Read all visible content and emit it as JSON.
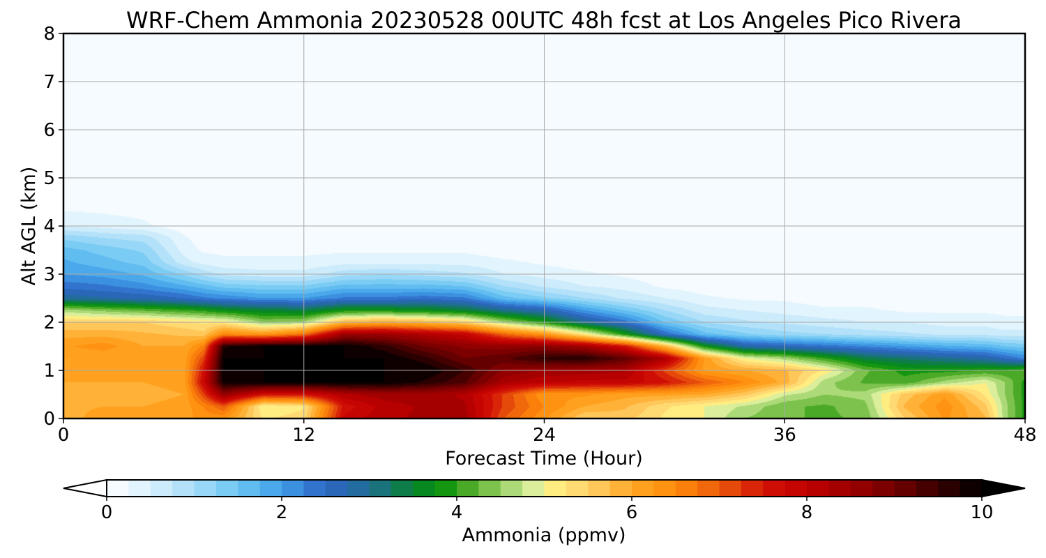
{
  "chart_data": {
    "type": "heatmap",
    "title": "WRF-Chem Ammonia  20230528 00UTC 48h fcst at Los Angeles Pico Rivera",
    "xlabel": "Forecast Time (Hour)",
    "ylabel": "Alt AGL (km)",
    "xlim": [
      0,
      48
    ],
    "ylim": [
      0,
      8
    ],
    "xticks": [
      "0",
      "12",
      "24",
      "36",
      "48"
    ],
    "yticks": [
      "0",
      "1",
      "2",
      "3",
      "4",
      "5",
      "6",
      "7",
      "8"
    ],
    "grid": true,
    "colorbar": {
      "label": "Ammonia  (ppmv)",
      "range": [
        0,
        10
      ],
      "extend": "both",
      "ticks": [
        "0",
        "2",
        "4",
        "6",
        "8",
        "10"
      ],
      "stops": [
        {
          "v": 0,
          "c": "#ffffff"
        },
        {
          "v": 0.5,
          "c": "#d8f0fc"
        },
        {
          "v": 1.0,
          "c": "#a6dcf8"
        },
        {
          "v": 1.5,
          "c": "#6cc6f3"
        },
        {
          "v": 2.0,
          "c": "#3f9ee8"
        },
        {
          "v": 2.5,
          "c": "#2e64c4"
        },
        {
          "v": 3.0,
          "c": "#1f6e92"
        },
        {
          "v": 3.5,
          "c": "#0a8232"
        },
        {
          "v": 3.8,
          "c": "#05900a"
        },
        {
          "v": 4.2,
          "c": "#5ab02e"
        },
        {
          "v": 4.6,
          "c": "#a8d874"
        },
        {
          "v": 4.9,
          "c": "#e0f0a0"
        },
        {
          "v": 5.0,
          "c": "#fff68a"
        },
        {
          "v": 5.5,
          "c": "#ffd06a"
        },
        {
          "v": 6.0,
          "c": "#ffa826"
        },
        {
          "v": 6.5,
          "c": "#ff8c0a"
        },
        {
          "v": 7.0,
          "c": "#ec5c0c"
        },
        {
          "v": 7.5,
          "c": "#d21206"
        },
        {
          "v": 8.0,
          "c": "#c00000"
        },
        {
          "v": 8.5,
          "c": "#9c0000"
        },
        {
          "v": 9.0,
          "c": "#720000"
        },
        {
          "v": 9.5,
          "c": "#380000"
        },
        {
          "v": 10.0,
          "c": "#000000"
        }
      ]
    },
    "field": {
      "x_hours": [
        0,
        2,
        4,
        6,
        7,
        8,
        10,
        12,
        14,
        16,
        18,
        20,
        22,
        24,
        26,
        28,
        30,
        32,
        34,
        36,
        38,
        40,
        42,
        44,
        46,
        47,
        48
      ],
      "z_km": [
        0,
        0.25,
        0.5,
        0.75,
        1.0,
        1.25,
        1.5,
        1.75,
        2.0,
        2.25,
        2.5,
        2.75,
        3.0,
        3.25,
        3.5,
        3.75,
        4.0,
        4.5,
        5.0,
        8.0
      ],
      "ppmv": [
        [
          5.8,
          6.2,
          6.0,
          6.1,
          6.4,
          6.3,
          5.2,
          5.4,
          7.8,
          8.2,
          8.3,
          8.4,
          7.0,
          6.3,
          5.5,
          5.6,
          5.2,
          5.0,
          4.5,
          4.3,
          4.2,
          4.3,
          5.5,
          6.3,
          5.8,
          4.6,
          3.9
        ],
        [
          5.9,
          6.0,
          6.0,
          6.1,
          6.5,
          7.0,
          5.0,
          5.2,
          7.6,
          8.1,
          8.3,
          8.3,
          7.2,
          6.5,
          6.0,
          5.8,
          5.3,
          5.0,
          4.7,
          4.3,
          4.2,
          4.4,
          5.8,
          6.4,
          5.6,
          4.6,
          3.9
        ],
        [
          5.9,
          6.0,
          5.9,
          6.0,
          7.2,
          8.6,
          7.6,
          7.6,
          8.2,
          8.4,
          8.4,
          8.2,
          7.2,
          6.3,
          6.3,
          6.1,
          6.1,
          6.0,
          5.6,
          4.8,
          4.5,
          4.6,
          5.6,
          6.2,
          5.2,
          4.5,
          3.9
        ],
        [
          6.0,
          6.0,
          6.0,
          6.1,
          7.8,
          9.9,
          10.0,
          10.0,
          10.0,
          10.0,
          9.7,
          9.3,
          8.3,
          8.0,
          7.9,
          7.9,
          7.6,
          7.0,
          6.5,
          5.9,
          4.6,
          4.2,
          4.1,
          4.6,
          5.0,
          4.5,
          3.9
        ],
        [
          6.0,
          6.0,
          6.0,
          6.1,
          7.6,
          10.0,
          10.0,
          10.0,
          10.0,
          10.0,
          10.0,
          9.5,
          8.7,
          8.5,
          8.4,
          8.3,
          7.2,
          6.2,
          6.0,
          5.8,
          5.2,
          4.3,
          3.9,
          3.9,
          4.0,
          4.0,
          4.2
        ],
        [
          6.0,
          6.0,
          6.0,
          6.1,
          7.2,
          10.0,
          10.0,
          10.0,
          10.0,
          10.0,
          9.6,
          9.0,
          9.2,
          9.6,
          9.7,
          9.2,
          8.3,
          6.2,
          5.0,
          4.6,
          4.0,
          3.4,
          3.2,
          3.0,
          2.8,
          2.5,
          2.2
        ],
        [
          6.2,
          6.4,
          6.0,
          6.0,
          6.6,
          9.7,
          10.0,
          10.0,
          10.0,
          9.6,
          9.0,
          8.7,
          8.6,
          8.7,
          8.4,
          7.6,
          5.9,
          3.8,
          2.8,
          2.6,
          2.4,
          2.2,
          2.0,
          1.8,
          1.7,
          1.5,
          1.4
        ],
        [
          5.9,
          5.9,
          5.8,
          5.7,
          5.6,
          6.5,
          6.3,
          6.8,
          8.5,
          8.5,
          8.2,
          7.9,
          6.9,
          6.3,
          5.2,
          3.9,
          2.5,
          1.6,
          1.3,
          1.1,
          1.0,
          0.9,
          0.8,
          0.7,
          0.7,
          0.6,
          0.6
        ],
        [
          5.5,
          5.5,
          5.5,
          5.3,
          5.2,
          5.2,
          4.5,
          4.6,
          5.8,
          6.0,
          5.8,
          5.5,
          4.6,
          3.9,
          3.0,
          2.4,
          1.5,
          1.0,
          0.8,
          0.7,
          0.6,
          0.5,
          0.5,
          0.4,
          0.4,
          0.3,
          0.3
        ],
        [
          4.6,
          4.4,
          4.2,
          4.0,
          3.9,
          3.7,
          3.5,
          3.4,
          3.8,
          3.8,
          3.7,
          3.5,
          3.0,
          2.7,
          2.0,
          1.5,
          1.0,
          0.6,
          0.5,
          0.4,
          0.3,
          0.3,
          0.2,
          0.2,
          0.2,
          0.2,
          0.2
        ],
        [
          2.9,
          2.8,
          2.7,
          2.5,
          2.3,
          2.2,
          2.0,
          2.0,
          2.3,
          2.3,
          2.4,
          2.3,
          1.6,
          1.3,
          1.0,
          0.7,
          0.5,
          0.3,
          0.2,
          0.2,
          0.1,
          0.1,
          0.1,
          0.1,
          0.1,
          0.1,
          0.1
        ],
        [
          2.4,
          2.3,
          2.1,
          1.8,
          1.6,
          1.4,
          1.3,
          1.3,
          1.6,
          1.6,
          1.6,
          1.5,
          1.0,
          0.7,
          0.5,
          0.4,
          0.2,
          0.1,
          0.1,
          0.1,
          0.0,
          0.0,
          0.0,
          0.0,
          0.0,
          0.0,
          0.0
        ],
        [
          2.0,
          1.9,
          1.7,
          1.2,
          0.9,
          0.7,
          0.6,
          0.6,
          0.9,
          1.0,
          0.9,
          0.8,
          0.5,
          0.4,
          0.3,
          0.2,
          0.1,
          0.1,
          0.0,
          0.0,
          0.0,
          0.0,
          0.0,
          0.0,
          0.0,
          0.0,
          0.0
        ],
        [
          1.8,
          1.6,
          1.4,
          0.6,
          0.4,
          0.3,
          0.3,
          0.3,
          0.4,
          0.4,
          0.4,
          0.4,
          0.3,
          0.2,
          0.1,
          0.1,
          0.0,
          0.0,
          0.0,
          0.0,
          0.0,
          0.0,
          0.0,
          0.0,
          0.0,
          0.0,
          0.0
        ],
        [
          1.6,
          1.4,
          1.2,
          0.4,
          0.2,
          0.2,
          0.2,
          0.2,
          0.2,
          0.2,
          0.2,
          0.2,
          0.1,
          0.1,
          0.0,
          0.0,
          0.0,
          0.0,
          0.0,
          0.0,
          0.0,
          0.0,
          0.0,
          0.0,
          0.0,
          0.0,
          0.0
        ],
        [
          1.2,
          1.0,
          0.9,
          0.3,
          0.1,
          0.1,
          0.1,
          0.1,
          0.1,
          0.1,
          0.1,
          0.1,
          0.1,
          0.0,
          0.0,
          0.0,
          0.0,
          0.0,
          0.0,
          0.0,
          0.0,
          0.0,
          0.0,
          0.0,
          0.0,
          0.0,
          0.0
        ],
        [
          0.5,
          0.4,
          0.3,
          0.1,
          0.1,
          0.0,
          0.0,
          0.0,
          0.0,
          0.0,
          0.0,
          0.0,
          0.0,
          0.0,
          0.0,
          0.0,
          0.0,
          0.0,
          0.0,
          0.0,
          0.0,
          0.0,
          0.0,
          0.0,
          0.0,
          0.0,
          0.0
        ],
        [
          0.1,
          0.1,
          0.1,
          0.0,
          0.0,
          0.0,
          0.0,
          0.0,
          0.0,
          0.0,
          0.0,
          0.0,
          0.0,
          0.0,
          0.0,
          0.0,
          0.0,
          0.0,
          0.0,
          0.0,
          0.0,
          0.0,
          0.0,
          0.0,
          0.0,
          0.0,
          0.0
        ],
        [
          0.05,
          0.05,
          0.05,
          0.05,
          0.05,
          0.05,
          0.05,
          0.05,
          0.05,
          0.05,
          0.05,
          0.05,
          0.05,
          0.05,
          0.05,
          0.05,
          0.05,
          0.05,
          0.05,
          0.05,
          0.05,
          0.05,
          0.05,
          0.05,
          0.05,
          0.05,
          0.05
        ],
        [
          0.05,
          0.05,
          0.05,
          0.05,
          0.05,
          0.05,
          0.05,
          0.05,
          0.05,
          0.05,
          0.05,
          0.05,
          0.05,
          0.05,
          0.05,
          0.05,
          0.05,
          0.05,
          0.05,
          0.05,
          0.05,
          0.05,
          0.05,
          0.05,
          0.05,
          0.05,
          0.05
        ]
      ]
    }
  }
}
